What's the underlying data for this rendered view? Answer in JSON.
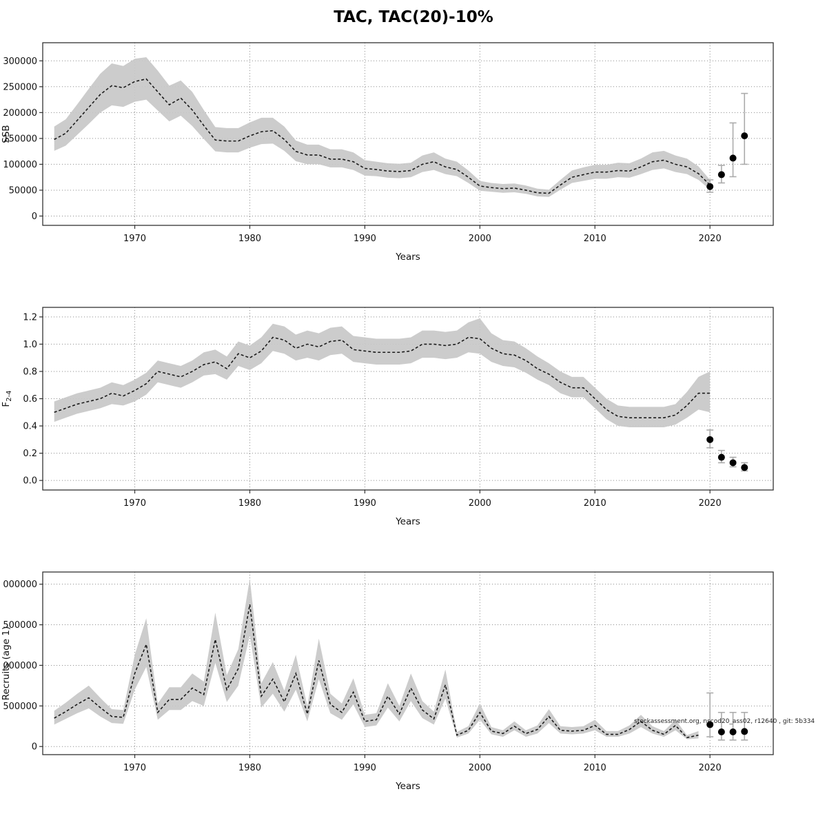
{
  "title": "TAC, TAC(20)-10%",
  "watermark": "stockassessment.org, nscod20_ass02, r12640 , git: 5b334",
  "chart_data": [
    {
      "type": "line",
      "name": "ssb",
      "xlabel": "Years",
      "ylabel": "SSB",
      "xlim": [
        1962,
        2025.5
      ],
      "ylim": [
        -18000,
        335000
      ],
      "xticks": [
        1970,
        1980,
        1990,
        2000,
        2010,
        2020
      ],
      "yticks": {
        "values": [
          0,
          50000,
          100000,
          150000,
          200000,
          250000,
          300000
        ],
        "labels": [
          "0",
          "50000",
          "100000",
          "150000",
          "200000",
          "250000",
          "300000"
        ]
      },
      "x_start": 1963,
      "x_step": 1,
      "mean": [
        148000,
        160000,
        185000,
        210000,
        235000,
        252000,
        248000,
        260000,
        265000,
        240000,
        215000,
        228000,
        205000,
        175000,
        147000,
        145000,
        145000,
        155000,
        163000,
        165000,
        148000,
        125000,
        118000,
        118000,
        110000,
        110000,
        105000,
        92000,
        90000,
        87000,
        86000,
        88000,
        100000,
        105000,
        95000,
        90000,
        75000,
        58000,
        55000,
        53000,
        54000,
        50000,
        45000,
        44000,
        60000,
        75000,
        80000,
        85000,
        85000,
        88000,
        87000,
        95000,
        105000,
        108000,
        100000,
        95000,
        82000,
        60000
      ],
      "lo": [
        126000,
        136000,
        157000,
        178000,
        200000,
        214000,
        211000,
        221000,
        225000,
        204000,
        183000,
        194000,
        174000,
        149000,
        125000,
        123000,
        123000,
        132000,
        139000,
        140000,
        126000,
        106000,
        100000,
        100000,
        94000,
        94000,
        89000,
        78000,
        77000,
        74000,
        73000,
        75000,
        85000,
        89000,
        81000,
        77000,
        64000,
        49000,
        47000,
        45000,
        46000,
        43000,
        38000,
        37000,
        51000,
        64000,
        68000,
        72000,
        72000,
        75000,
        74000,
        81000,
        89000,
        92000,
        85000,
        81000,
        70000,
        51000
      ],
      "hi": [
        173000,
        187000,
        216000,
        246000,
        275000,
        295000,
        290000,
        304000,
        307000,
        281000,
        252000,
        262000,
        240000,
        205000,
        172000,
        170000,
        170000,
        181000,
        190000,
        190000,
        173000,
        146000,
        138000,
        138000,
        129000,
        129000,
        123000,
        108000,
        105000,
        102000,
        101000,
        103000,
        117000,
        123000,
        111000,
        105000,
        88000,
        68000,
        64000,
        62000,
        63000,
        59000,
        53000,
        51000,
        70000,
        88000,
        94000,
        99000,
        99000,
        103000,
        102000,
        111000,
        123000,
        126000,
        117000,
        111000,
        96000,
        70000
      ],
      "forecast": [
        {
          "x": 2020,
          "y": 57000,
          "lo": 46000,
          "hi": 70000
        },
        {
          "x": 2021,
          "y": 80000,
          "lo": 64000,
          "hi": 98000
        },
        {
          "x": 2022,
          "y": 112000,
          "lo": 76000,
          "hi": 180000
        },
        {
          "x": 2023,
          "y": 155000,
          "lo": 100000,
          "hi": 237000
        }
      ]
    },
    {
      "type": "line",
      "name": "fishing-mortality",
      "xlabel": "Years",
      "ylabel": "F",
      "ylabel_sub": "2-4",
      "xlim": [
        1962,
        2025.5
      ],
      "ylim": [
        -0.07,
        1.27
      ],
      "xticks": [
        1970,
        1980,
        1990,
        2000,
        2010,
        2020
      ],
      "yticks": {
        "values": [
          0.0,
          0.2,
          0.4,
          0.6,
          0.8,
          1.0,
          1.2
        ],
        "labels": [
          "0.0",
          "0.2",
          "0.4",
          "0.6",
          "0.8",
          "1.0",
          "1.2"
        ]
      },
      "x_start": 1963,
      "x_step": 1,
      "mean": [
        0.5,
        0.53,
        0.56,
        0.58,
        0.6,
        0.64,
        0.62,
        0.66,
        0.71,
        0.8,
        0.78,
        0.76,
        0.8,
        0.85,
        0.87,
        0.82,
        0.93,
        0.9,
        0.95,
        1.05,
        1.03,
        0.97,
        1.0,
        0.98,
        1.02,
        1.03,
        0.96,
        0.95,
        0.94,
        0.94,
        0.94,
        0.95,
        1.0,
        1.0,
        0.99,
        1.0,
        1.05,
        1.04,
        0.97,
        0.93,
        0.92,
        0.88,
        0.82,
        0.78,
        0.72,
        0.68,
        0.68,
        0.6,
        0.52,
        0.47,
        0.46,
        0.46,
        0.46,
        0.46,
        0.48,
        0.55,
        0.64,
        0.64
      ],
      "lo": [
        0.43,
        0.46,
        0.49,
        0.51,
        0.53,
        0.56,
        0.55,
        0.58,
        0.63,
        0.72,
        0.7,
        0.68,
        0.72,
        0.77,
        0.78,
        0.74,
        0.84,
        0.81,
        0.86,
        0.95,
        0.93,
        0.88,
        0.9,
        0.88,
        0.92,
        0.93,
        0.87,
        0.86,
        0.85,
        0.85,
        0.85,
        0.86,
        0.9,
        0.9,
        0.89,
        0.9,
        0.94,
        0.93,
        0.87,
        0.84,
        0.83,
        0.79,
        0.74,
        0.7,
        0.64,
        0.61,
        0.61,
        0.53,
        0.45,
        0.4,
        0.39,
        0.39,
        0.39,
        0.39,
        0.41,
        0.46,
        0.52,
        0.5
      ],
      "hi": [
        0.58,
        0.61,
        0.64,
        0.66,
        0.68,
        0.72,
        0.7,
        0.74,
        0.79,
        0.88,
        0.86,
        0.84,
        0.88,
        0.94,
        0.96,
        0.91,
        1.02,
        0.99,
        1.05,
        1.15,
        1.13,
        1.07,
        1.1,
        1.08,
        1.12,
        1.13,
        1.06,
        1.05,
        1.04,
        1.04,
        1.04,
        1.05,
        1.1,
        1.1,
        1.09,
        1.1,
        1.16,
        1.19,
        1.08,
        1.03,
        1.02,
        0.97,
        0.91,
        0.86,
        0.8,
        0.76,
        0.76,
        0.68,
        0.6,
        0.55,
        0.54,
        0.54,
        0.54,
        0.54,
        0.56,
        0.65,
        0.76,
        0.8
      ],
      "forecast": [
        {
          "x": 2020,
          "y": 0.3,
          "lo": 0.24,
          "hi": 0.37
        },
        {
          "x": 2021,
          "y": 0.17,
          "lo": 0.13,
          "hi": 0.22
        },
        {
          "x": 2022,
          "y": 0.13,
          "lo": 0.1,
          "hi": 0.17
        },
        {
          "x": 2023,
          "y": 0.095,
          "lo": 0.07,
          "hi": 0.13
        }
      ]
    },
    {
      "type": "line",
      "name": "recruits",
      "xlabel": "Years",
      "ylabel": "Recruits (age 1)",
      "xlim": [
        1962,
        2025.5
      ],
      "ylim": [
        -100000,
        2150000
      ],
      "xticks": [
        1970,
        1980,
        1990,
        2000,
        2010,
        2020
      ],
      "yticks": {
        "values": [
          0,
          500000,
          1000000,
          1500000,
          2000000
        ],
        "labels": [
          "0",
          "500000",
          "000000",
          "500000",
          "000000"
        ]
      },
      "x_start": 1963,
      "x_step": 1,
      "mean": [
        350000,
        430000,
        520000,
        600000,
        480000,
        370000,
        360000,
        900000,
        1260000,
        420000,
        580000,
        580000,
        720000,
        640000,
        1320000,
        700000,
        960000,
        1750000,
        620000,
        830000,
        550000,
        900000,
        400000,
        1060000,
        520000,
        420000,
        670000,
        310000,
        330000,
        620000,
        400000,
        720000,
        450000,
        340000,
        760000,
        140000,
        200000,
        420000,
        190000,
        160000,
        250000,
        160000,
        210000,
        370000,
        200000,
        190000,
        200000,
        260000,
        150000,
        150000,
        210000,
        310000,
        200000,
        150000,
        260000,
        110000,
        140000
      ],
      "lo": [
        270000,
        340000,
        410000,
        470000,
        370000,
        290000,
        280000,
        700000,
        980000,
        330000,
        450000,
        450000,
        560000,
        500000,
        1030000,
        550000,
        750000,
        1370000,
        480000,
        650000,
        430000,
        700000,
        310000,
        830000,
        410000,
        330000,
        520000,
        240000,
        260000,
        480000,
        310000,
        560000,
        350000,
        270000,
        590000,
        110000,
        160000,
        330000,
        150000,
        120000,
        200000,
        120000,
        160000,
        290000,
        160000,
        150000,
        160000,
        200000,
        120000,
        120000,
        160000,
        240000,
        160000,
        120000,
        200000,
        90000,
        100000
      ],
      "hi": [
        440000,
        540000,
        650000,
        750000,
        600000,
        460000,
        450000,
        1130000,
        1580000,
        530000,
        730000,
        730000,
        900000,
        800000,
        1650000,
        880000,
        1200000,
        2070000,
        780000,
        1040000,
        690000,
        1130000,
        500000,
        1330000,
        650000,
        530000,
        840000,
        390000,
        410000,
        780000,
        500000,
        900000,
        560000,
        430000,
        950000,
        180000,
        250000,
        530000,
        240000,
        200000,
        310000,
        200000,
        260000,
        460000,
        250000,
        240000,
        250000,
        330000,
        190000,
        190000,
        260000,
        390000,
        250000,
        190000,
        330000,
        140000,
        190000
      ],
      "forecast": [
        {
          "x": 2020,
          "y": 270000,
          "lo": 120000,
          "hi": 660000
        },
        {
          "x": 2021,
          "y": 180000,
          "lo": 80000,
          "hi": 420000
        },
        {
          "x": 2022,
          "y": 180000,
          "lo": 80000,
          "hi": 420000
        },
        {
          "x": 2023,
          "y": 185000,
          "lo": 80000,
          "hi": 420000
        }
      ]
    }
  ]
}
